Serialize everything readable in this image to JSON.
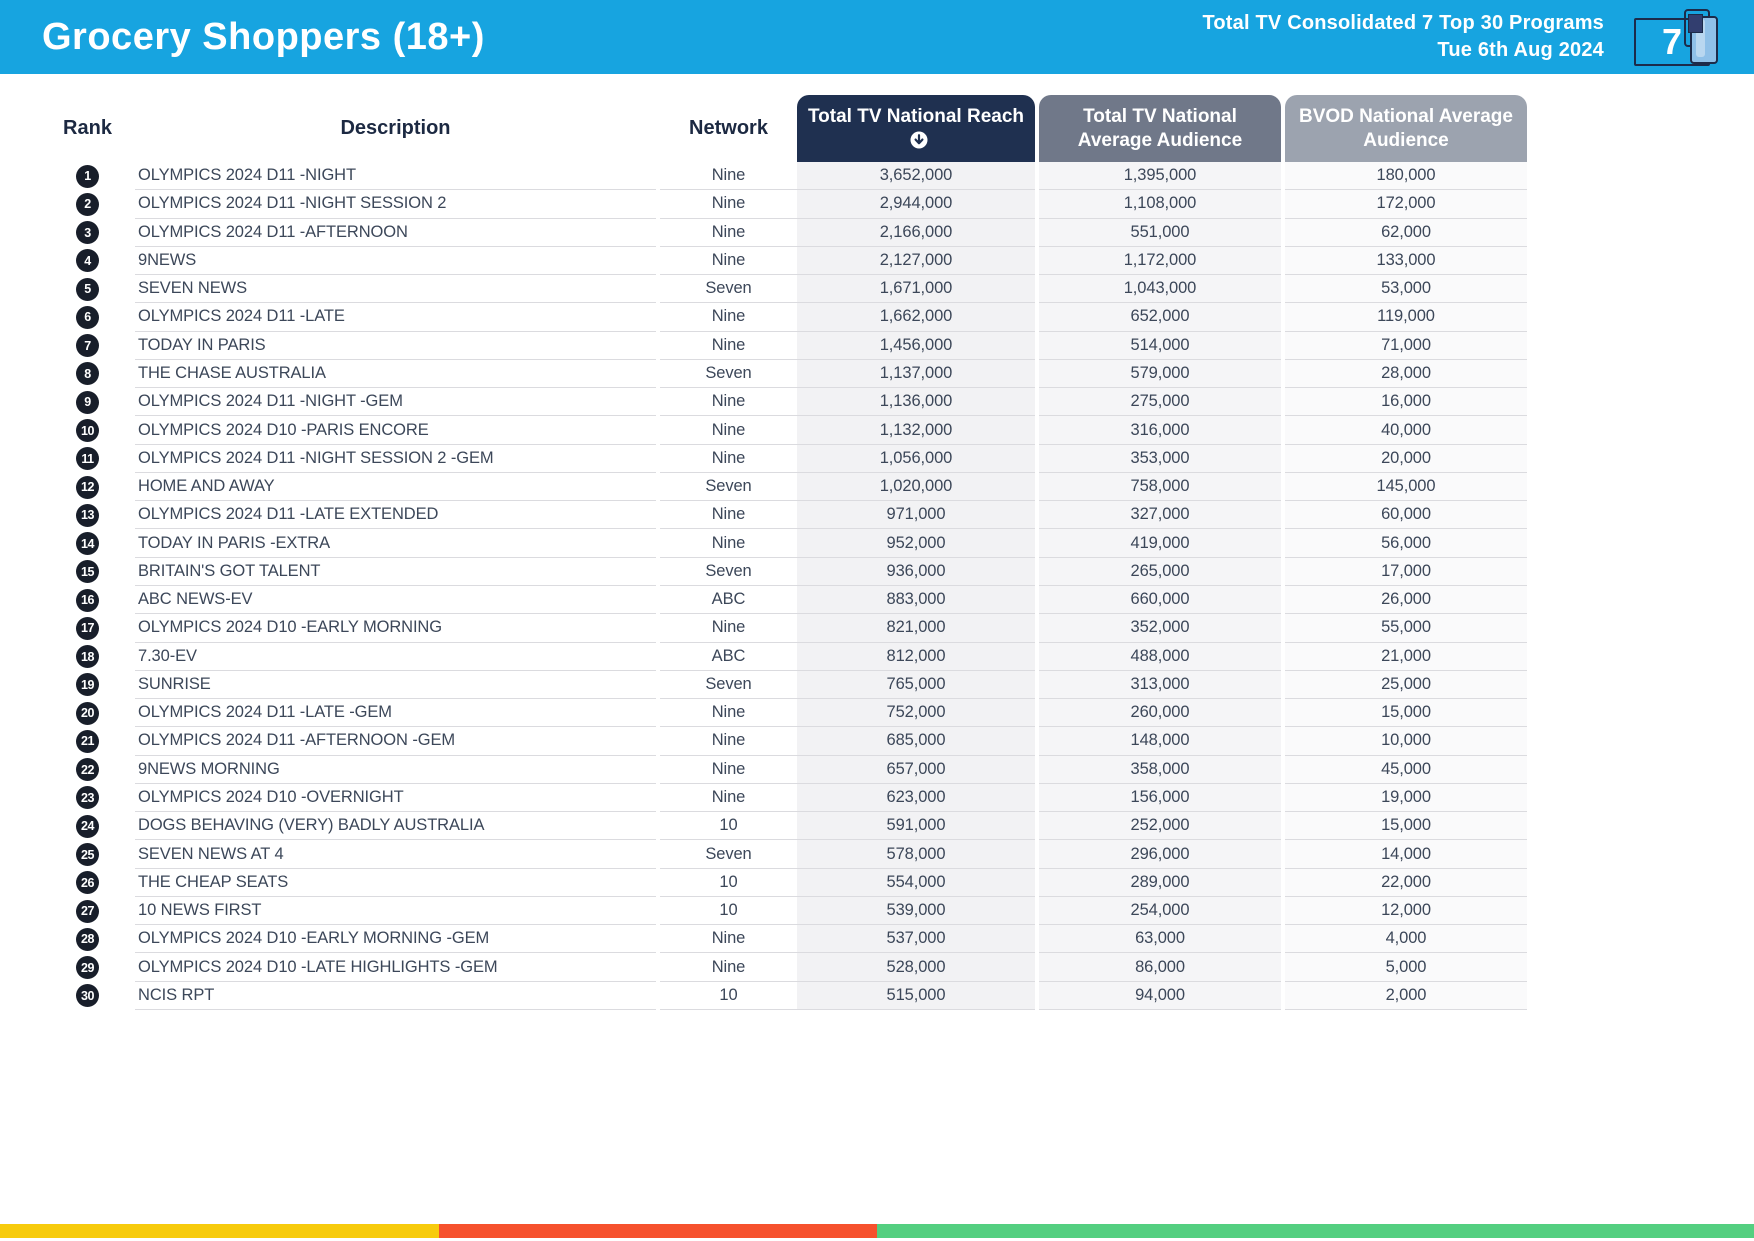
{
  "header": {
    "title": "Grocery Shoppers (18+)",
    "subtitle_line1": "Total TV Consolidated 7 Top 30 Programs",
    "subtitle_line2": "Tue 6th Aug 2024",
    "logo_text": "7",
    "accent_color": "#17A4E0"
  },
  "table": {
    "columns": {
      "rank": "Rank",
      "description": "Description",
      "network": "Network",
      "reach": "Total TV National Reach",
      "avg": "Total TV National Average Audience",
      "bvod": "BVOD National Average Audience"
    },
    "header_colors": {
      "reach": "#1F3050",
      "avg": "#707889",
      "bvod": "#9CA3AF"
    },
    "sort_column": "reach",
    "sort_direction": "desc",
    "rows": [
      {
        "rank": "1",
        "description": "OLYMPICS 2024 D11 -NIGHT",
        "network": "Nine",
        "reach": "3,652,000",
        "avg": "1,395,000",
        "bvod": "180,000"
      },
      {
        "rank": "2",
        "description": "OLYMPICS 2024 D11 -NIGHT SESSION 2",
        "network": "Nine",
        "reach": "2,944,000",
        "avg": "1,108,000",
        "bvod": "172,000"
      },
      {
        "rank": "3",
        "description": "OLYMPICS 2024 D11 -AFTERNOON",
        "network": "Nine",
        "reach": "2,166,000",
        "avg": "551,000",
        "bvod": "62,000"
      },
      {
        "rank": "4",
        "description": "9NEWS",
        "network": "Nine",
        "reach": "2,127,000",
        "avg": "1,172,000",
        "bvod": "133,000"
      },
      {
        "rank": "5",
        "description": "SEVEN NEWS",
        "network": "Seven",
        "reach": "1,671,000",
        "avg": "1,043,000",
        "bvod": "53,000"
      },
      {
        "rank": "6",
        "description": "OLYMPICS 2024 D11 -LATE",
        "network": "Nine",
        "reach": "1,662,000",
        "avg": "652,000",
        "bvod": "119,000"
      },
      {
        "rank": "7",
        "description": "TODAY IN PARIS",
        "network": "Nine",
        "reach": "1,456,000",
        "avg": "514,000",
        "bvod": "71,000"
      },
      {
        "rank": "8",
        "description": "THE CHASE AUSTRALIA",
        "network": "Seven",
        "reach": "1,137,000",
        "avg": "579,000",
        "bvod": "28,000"
      },
      {
        "rank": "9",
        "description": "OLYMPICS 2024 D11 -NIGHT -GEM",
        "network": "Nine",
        "reach": "1,136,000",
        "avg": "275,000",
        "bvod": "16,000"
      },
      {
        "rank": "10",
        "description": "OLYMPICS 2024 D10 -PARIS ENCORE",
        "network": "Nine",
        "reach": "1,132,000",
        "avg": "316,000",
        "bvod": "40,000"
      },
      {
        "rank": "11",
        "description": "OLYMPICS 2024 D11 -NIGHT SESSION 2 -GEM",
        "network": "Nine",
        "reach": "1,056,000",
        "avg": "353,000",
        "bvod": "20,000"
      },
      {
        "rank": "12",
        "description": "HOME AND AWAY",
        "network": "Seven",
        "reach": "1,020,000",
        "avg": "758,000",
        "bvod": "145,000"
      },
      {
        "rank": "13",
        "description": "OLYMPICS 2024 D11 -LATE EXTENDED",
        "network": "Nine",
        "reach": "971,000",
        "avg": "327,000",
        "bvod": "60,000"
      },
      {
        "rank": "14",
        "description": "TODAY IN PARIS -EXTRA",
        "network": "Nine",
        "reach": "952,000",
        "avg": "419,000",
        "bvod": "56,000"
      },
      {
        "rank": "15",
        "description": "BRITAIN'S GOT TALENT",
        "network": "Seven",
        "reach": "936,000",
        "avg": "265,000",
        "bvod": "17,000"
      },
      {
        "rank": "16",
        "description": "ABC NEWS-EV",
        "network": "ABC",
        "reach": "883,000",
        "avg": "660,000",
        "bvod": "26,000"
      },
      {
        "rank": "17",
        "description": "OLYMPICS 2024 D10 -EARLY MORNING",
        "network": "Nine",
        "reach": "821,000",
        "avg": "352,000",
        "bvod": "55,000"
      },
      {
        "rank": "18",
        "description": "7.30-EV",
        "network": "ABC",
        "reach": "812,000",
        "avg": "488,000",
        "bvod": "21,000"
      },
      {
        "rank": "19",
        "description": "SUNRISE",
        "network": "Seven",
        "reach": "765,000",
        "avg": "313,000",
        "bvod": "25,000"
      },
      {
        "rank": "20",
        "description": "OLYMPICS 2024 D11 -LATE -GEM",
        "network": "Nine",
        "reach": "752,000",
        "avg": "260,000",
        "bvod": "15,000"
      },
      {
        "rank": "21",
        "description": "OLYMPICS 2024 D11 -AFTERNOON -GEM",
        "network": "Nine",
        "reach": "685,000",
        "avg": "148,000",
        "bvod": "10,000"
      },
      {
        "rank": "22",
        "description": "9NEWS MORNING",
        "network": "Nine",
        "reach": "657,000",
        "avg": "358,000",
        "bvod": "45,000"
      },
      {
        "rank": "23",
        "description": "OLYMPICS 2024 D10 -OVERNIGHT",
        "network": "Nine",
        "reach": "623,000",
        "avg": "156,000",
        "bvod": "19,000"
      },
      {
        "rank": "24",
        "description": "DOGS BEHAVING (VERY) BADLY AUSTRALIA",
        "network": "10",
        "reach": "591,000",
        "avg": "252,000",
        "bvod": "15,000"
      },
      {
        "rank": "25",
        "description": "SEVEN NEWS AT 4",
        "network": "Seven",
        "reach": "578,000",
        "avg": "296,000",
        "bvod": "14,000"
      },
      {
        "rank": "26",
        "description": "THE CHEAP SEATS",
        "network": "10",
        "reach": "554,000",
        "avg": "289,000",
        "bvod": "22,000"
      },
      {
        "rank": "27",
        "description": "10 NEWS FIRST",
        "network": "10",
        "reach": "539,000",
        "avg": "254,000",
        "bvod": "12,000"
      },
      {
        "rank": "28",
        "description": "OLYMPICS 2024 D10 -EARLY MORNING -GEM",
        "network": "Nine",
        "reach": "537,000",
        "avg": "63,000",
        "bvod": "4,000"
      },
      {
        "rank": "29",
        "description": "OLYMPICS 2024 D10 -LATE HIGHLIGHTS -GEM",
        "network": "Nine",
        "reach": "528,000",
        "avg": "86,000",
        "bvod": "5,000"
      },
      {
        "rank": "30",
        "description": "NCIS RPT",
        "network": "10",
        "reach": "515,000",
        "avg": "94,000",
        "bvod": "2,000"
      }
    ]
  },
  "footer": {
    "segments": [
      {
        "name": "yellow-segment",
        "color": "#F7CB0D",
        "width_pct": 25
      },
      {
        "name": "red-segment",
        "color": "#F6512D",
        "width_pct": 25
      },
      {
        "name": "green-segment",
        "color": "#54CF80",
        "width_pct": 50
      }
    ]
  }
}
